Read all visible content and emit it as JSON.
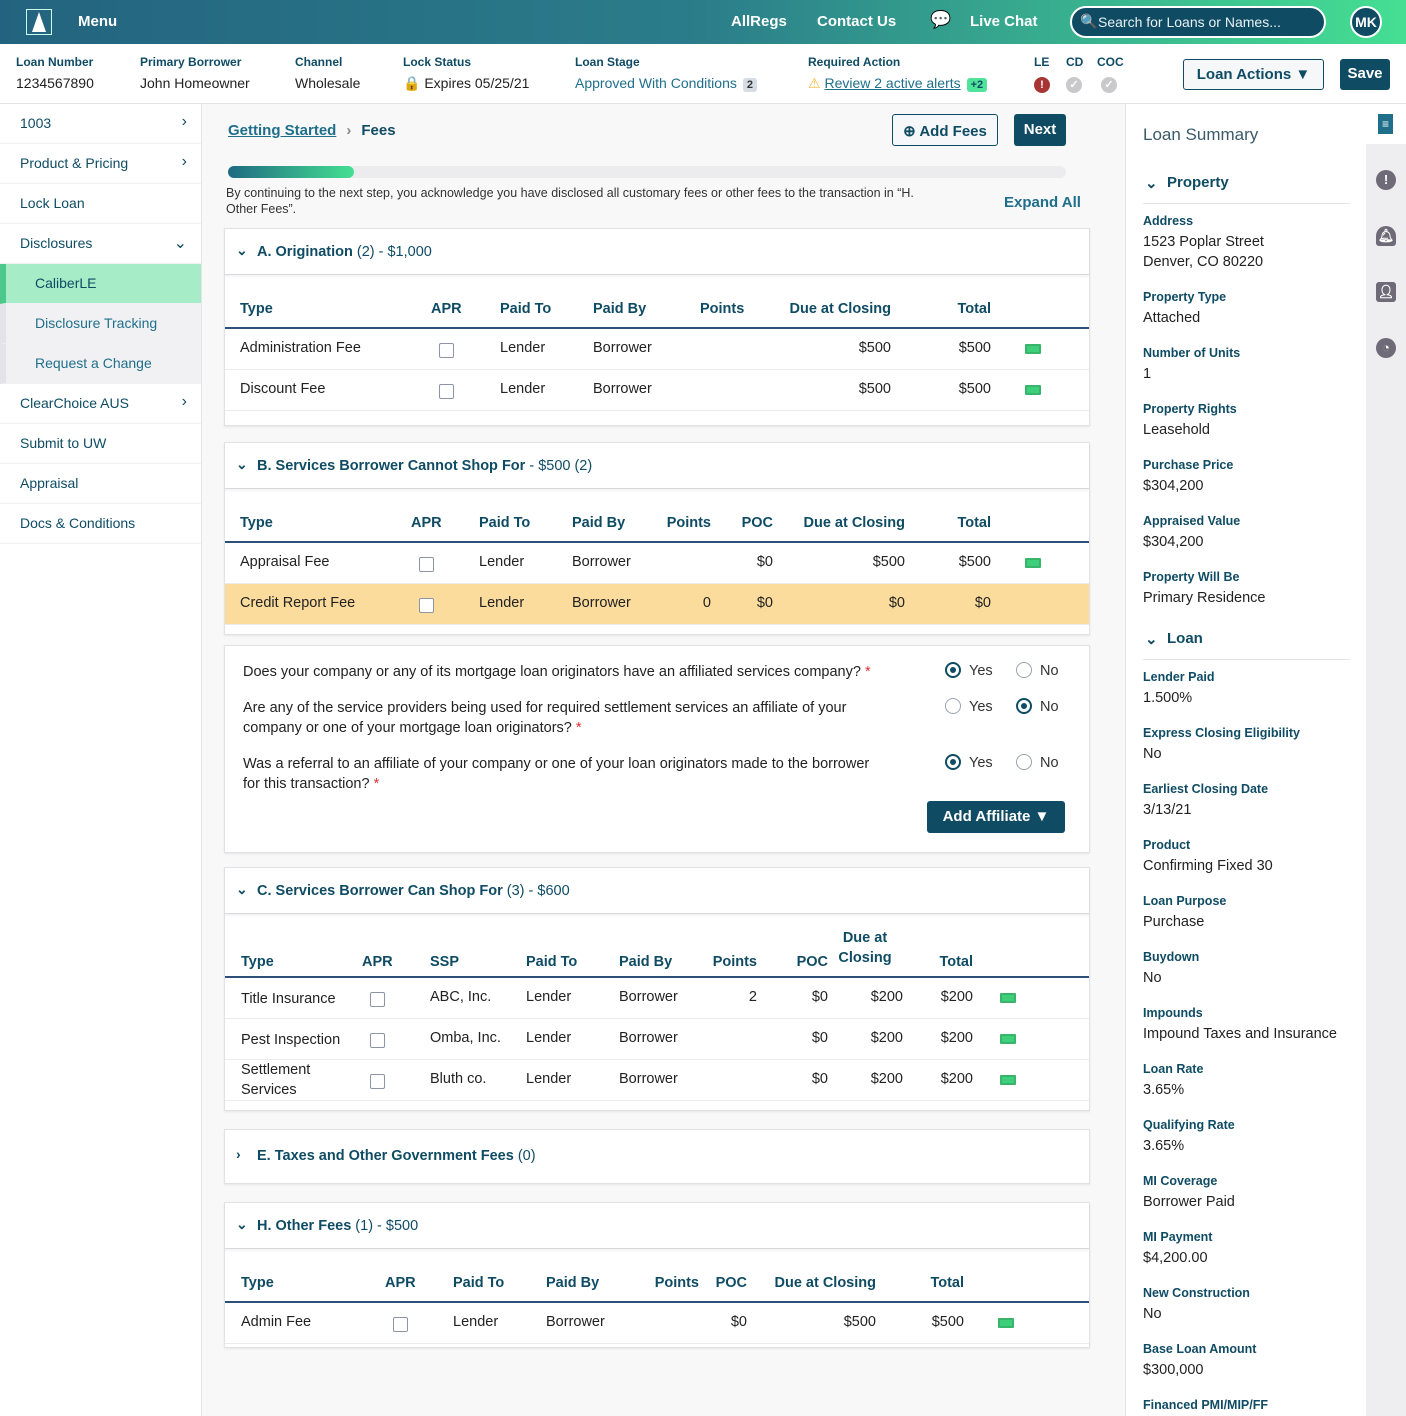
{
  "topbar": {
    "menu": "Menu",
    "allregs": "AllRegs",
    "contact": "Contact Us",
    "chat": "Live Chat",
    "search_placeholder": "Search for Loans or Names...",
    "avatar": "MK"
  },
  "info": {
    "loan_number_label": "Loan Number",
    "loan_number": "1234567890",
    "borrower_label": "Primary Borrower",
    "borrower": "John Homeowner",
    "channel_label": "Channel",
    "channel": "Wholesale",
    "lock_label": "Lock Status",
    "lock": "Expires 05/25/21",
    "stage_label": "Loan Stage",
    "stage": "Approved With Conditions",
    "stage_count": "2",
    "action_label": "Required Action",
    "action": "Review 2 active alerts",
    "action_more": "+2",
    "le": "LE",
    "cd": "CD",
    "coc": "COC",
    "loan_actions": "Loan Actions",
    "save": "Save"
  },
  "sidebar": {
    "items": [
      {
        "label": "1003",
        "chev": "right"
      },
      {
        "label": "Product & Pricing",
        "chev": "right"
      },
      {
        "label": "Lock Loan"
      },
      {
        "label": "Disclosures",
        "chev": "down"
      },
      {
        "label": "CaliberLE",
        "sub": true,
        "active": true
      },
      {
        "label": "Disclosure Tracking",
        "sub": true
      },
      {
        "label": "Request a Change",
        "sub": true
      },
      {
        "label": "ClearChoice AUS",
        "chev": "right"
      },
      {
        "label": "Submit to UW"
      },
      {
        "label": "Appraisal"
      },
      {
        "label": "Docs & Conditions"
      }
    ]
  },
  "main": {
    "crumb_parent": "Getting Started",
    "crumb_current": "Fees",
    "add_fees": "Add Fees",
    "next": "Next",
    "progress_percent": 15,
    "note": "By continuing to the next step, you acknowledge you have disclosed all customary fees or other fees to the transaction in “H. Other Fees”.",
    "expand_all": "Expand All"
  },
  "sections": {
    "a": {
      "title": "A. Origination",
      "meta": " (2) - $1,000",
      "headers": [
        "Type",
        "APR",
        "Paid To",
        "Paid By",
        "Points",
        "Due at Closing",
        "Total"
      ],
      "rows": [
        [
          "Administration Fee",
          "",
          "Lender",
          "Borrower",
          "",
          "$500",
          "$500"
        ],
        [
          "Discount Fee",
          "",
          "Lender",
          "Borrower",
          "",
          "$500",
          "$500"
        ]
      ]
    },
    "b": {
      "title": "B. Services Borrower Cannot Shop For",
      "meta": " - $500 (2)",
      "headers": [
        "Type",
        "APR",
        "Paid To",
        "Paid By",
        "Points",
        "POC",
        "Due at Closing",
        "Total"
      ],
      "rows": [
        [
          "Appraisal Fee",
          "",
          "Lender",
          "Borrower",
          "",
          "$0",
          "$500",
          "$500"
        ],
        [
          "Credit Report Fee",
          "",
          "Lender",
          "Borrower",
          "0",
          "$0",
          "$0",
          "$0"
        ]
      ]
    },
    "c": {
      "title": "C. Services Borrower Can Shop For",
      "meta": " (3) - $600",
      "headers": [
        "Type",
        "APR",
        "SSP",
        "Paid To",
        "Paid By",
        "Points",
        "POC",
        "Due at Closing",
        "Total"
      ],
      "rows": [
        [
          "Title Insurance",
          "",
          "ABC, Inc.",
          "Lender",
          "Borrower",
          "2",
          "$0",
          "$200",
          "$200"
        ],
        [
          "Pest Inspection",
          "",
          "Omba, Inc.",
          "Lender",
          "Borrower",
          "",
          "$0",
          "$200",
          "$200"
        ],
        [
          "Settlement Services",
          "",
          "Bluth co.",
          "Lender",
          "Borrower",
          "",
          "$0",
          "$200",
          "$200"
        ]
      ]
    },
    "e": {
      "title": "E. Taxes and Other Government Fees",
      "meta": " (0)"
    },
    "h": {
      "title": "H. Other Fees",
      "meta": " (1) - $500",
      "headers": [
        "Type",
        "APR",
        "Paid To",
        "Paid By",
        "Points",
        "POC",
        "Due at Closing",
        "Total"
      ],
      "rows": [
        [
          "Admin Fee",
          "",
          "Lender",
          "Borrower",
          "",
          "$0",
          "$500",
          "$500"
        ]
      ]
    }
  },
  "affiliates": {
    "questions": [
      {
        "text": "Does your company or any of its mortgage loan originators have an affiliated services company?",
        "answer": "Yes"
      },
      {
        "text": "Are any of the service providers being used for required settlement services an affiliate of your company or one of your mortgage loan originators?",
        "answer": "No"
      },
      {
        "text": "Was a referral to an affiliate of your company or one of your loan originators made to the borrower for this transaction?",
        "answer": "Yes"
      }
    ],
    "required": "*",
    "yes": "Yes",
    "no": "No",
    "add_affiliate": "Add Affiliate"
  },
  "summary": {
    "title": "Loan Summary",
    "property_group": "Property",
    "loan_group": "Loan",
    "property": [
      {
        "label": "Address",
        "value": "1523 Poplar Street\nDenver, CO 80220"
      },
      {
        "label": "Property Type",
        "value": "Attached"
      },
      {
        "label": "Number of Units",
        "value": "1"
      },
      {
        "label": "Property Rights",
        "value": "Leasehold"
      },
      {
        "label": "Purchase Price",
        "value": "$304,200"
      },
      {
        "label": "Appraised Value",
        "value": "$304,200"
      },
      {
        "label": "Property Will Be",
        "value": "Primary Residence"
      }
    ],
    "loan": [
      {
        "label": "Lender Paid",
        "value": "1.500%"
      },
      {
        "label": "Express Closing Eligibility",
        "value": "No"
      },
      {
        "label": "Earliest Closing Date",
        "value": "3/13/21"
      },
      {
        "label": "Product",
        "value": "Confirming Fixed 30"
      },
      {
        "label": "Loan Purpose",
        "value": "Purchase"
      },
      {
        "label": "Buydown",
        "value": "No"
      },
      {
        "label": "Impounds",
        "value": "Impound Taxes and Insurance"
      },
      {
        "label": "Loan Rate",
        "value": "3.65%"
      },
      {
        "label": "Qualifying Rate",
        "value": "3.65%"
      },
      {
        "label": "MI Coverage",
        "value": "Borrower Paid"
      },
      {
        "label": "MI Payment",
        "value": "$4,200.00"
      },
      {
        "label": "New Construction",
        "value": "No"
      },
      {
        "label": "Base Loan Amount",
        "value": "$300,000"
      },
      {
        "label": "Financed PMI/MIP/FF",
        "value": ""
      }
    ]
  }
}
